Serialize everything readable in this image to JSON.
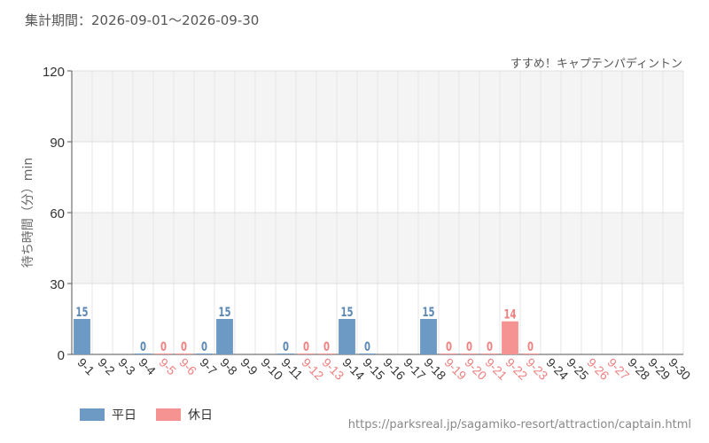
{
  "header": {
    "period": "集計期間：2026-09-01～2026-09-30",
    "subtitle": "すすめ！キャプテンパディントン",
    "source": "https://parksreal.jp/sagamiko-resort/attraction/captain.html"
  },
  "colors": {
    "weekday": "#6c9ac4",
    "holiday": "#f59393",
    "weekday_label": "#5b87b3",
    "holiday_label": "#f08080",
    "tick_normal": "#333333"
  },
  "legend": [
    {
      "label": "平日",
      "color_key": "weekday"
    },
    {
      "label": "休日",
      "color_key": "holiday"
    }
  ],
  "chart_data": {
    "type": "bar",
    "title": "",
    "ylabel": "待ち時間（分）min",
    "xlabel": "",
    "ylim": [
      0,
      120
    ],
    "yticks": [
      0,
      30,
      60,
      90,
      120
    ],
    "categories": [
      "9-1",
      "9-2",
      "9-3",
      "9-4",
      "9-5",
      "9-6",
      "9-7",
      "9-8",
      "9-9",
      "9-10",
      "9-11",
      "9-12",
      "9-13",
      "9-14",
      "9-15",
      "9-16",
      "9-17",
      "9-18",
      "9-19",
      "9-20",
      "9-21",
      "9-22",
      "9-23",
      "9-24",
      "9-25",
      "9-26",
      "9-27",
      "9-28",
      "9-29",
      "9-30"
    ],
    "values": [
      15,
      null,
      null,
      0,
      0,
      0,
      0,
      15,
      null,
      null,
      0,
      0,
      0,
      15,
      0,
      null,
      null,
      15,
      0,
      0,
      0,
      14,
      0,
      null,
      null,
      null,
      null,
      null,
      null,
      null
    ],
    "day_type": [
      "weekday",
      "weekday",
      "weekday",
      "weekday",
      "holiday",
      "holiday",
      "weekday",
      "weekday",
      "weekday",
      "weekday",
      "weekday",
      "holiday",
      "holiday",
      "weekday",
      "weekday",
      "weekday",
      "weekday",
      "weekday",
      "holiday",
      "holiday",
      "holiday",
      "holiday",
      "holiday",
      "weekday",
      "weekday",
      "holiday",
      "holiday",
      "weekday",
      "weekday",
      "weekday"
    ]
  }
}
